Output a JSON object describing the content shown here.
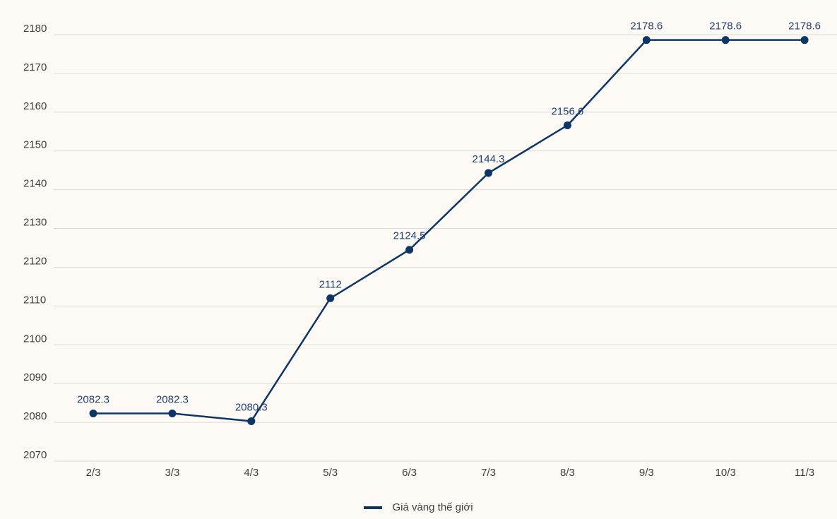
{
  "chart_data": {
    "type": "line",
    "title": "",
    "xlabel": "",
    "ylabel": "",
    "categories": [
      "2/3",
      "3/3",
      "4/3",
      "5/3",
      "6/3",
      "7/3",
      "8/3",
      "9/3",
      "10/3",
      "11/3"
    ],
    "series": [
      {
        "name": "Giá vàng thế giới",
        "color": "#0d3566",
        "values": [
          2082.3,
          2082.3,
          2080.3,
          2112,
          2124.5,
          2144.3,
          2156.6,
          2178.6,
          2178.6,
          2178.6
        ]
      }
    ],
    "data_labels": [
      "2082.3",
      "2082.3",
      "2080.3",
      "2112",
      "2124.5",
      "2144.3",
      "2156.6",
      "2178.6",
      "2178.6",
      "2178.6"
    ],
    "ylim": [
      2070,
      2180
    ],
    "yticks": [
      "2070",
      "2080",
      "2090",
      "2100",
      "2110",
      "2120",
      "2130",
      "2140",
      "2150",
      "2160",
      "2170",
      "2180"
    ],
    "grid": true,
    "legend_position": "bottom-center",
    "colors": {
      "background": "#fdf9f5",
      "grid": "#dcdcdc",
      "series": "#0d3566",
      "data_label": "#1f4170",
      "axis_text": "#3e3e3e"
    }
  }
}
